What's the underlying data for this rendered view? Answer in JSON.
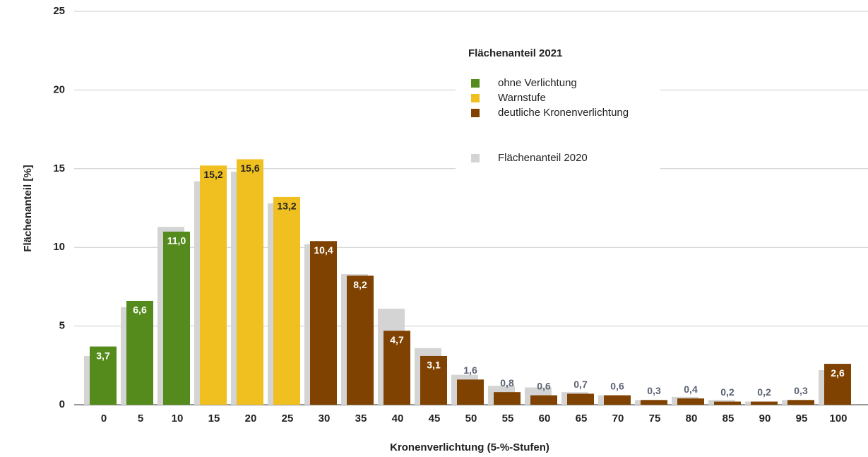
{
  "chart_data": {
    "type": "bar",
    "x_label": "Kronenverlichtung (5-%-Stufen)",
    "y_label": "Flächenanteil [%]",
    "legend_title": "Flächenanteil 2021",
    "categories": [
      0,
      5,
      10,
      15,
      20,
      25,
      30,
      35,
      40,
      45,
      50,
      55,
      60,
      65,
      70,
      75,
      80,
      85,
      90,
      95,
      100
    ],
    "ylim": [
      0,
      25
    ],
    "yticks": [
      0,
      5,
      10,
      15,
      20,
      25
    ],
    "grid": true,
    "series": [
      {
        "name": "Flächenanteil 2020",
        "color": "#d4d4d4",
        "role": "background",
        "values": [
          3.1,
          6.2,
          11.3,
          14.2,
          14.8,
          12.8,
          10.2,
          8.3,
          6.1,
          3.6,
          1.9,
          1.2,
          1.1,
          0.8,
          0.6,
          0.3,
          0.5,
          0.3,
          0.2,
          0.3,
          2.2
        ]
      },
      {
        "name": "ohne Verlichtung",
        "color": "#548b1c",
        "label_color": "#ffffff",
        "values": [
          3.7,
          6.6,
          11.0,
          null,
          null,
          null,
          null,
          null,
          null,
          null,
          null,
          null,
          null,
          null,
          null,
          null,
          null,
          null,
          null,
          null,
          null
        ],
        "value_labels": [
          "3,7",
          "6,6",
          "11,0",
          null,
          null,
          null,
          null,
          null,
          null,
          null,
          null,
          null,
          null,
          null,
          null,
          null,
          null,
          null,
          null,
          null,
          null
        ]
      },
      {
        "name": "Warnstufe",
        "color": "#f0c020",
        "label_color": "#222222",
        "values": [
          null,
          null,
          null,
          15.2,
          15.6,
          13.2,
          null,
          null,
          null,
          null,
          null,
          null,
          null,
          null,
          null,
          null,
          null,
          null,
          null,
          null,
          null
        ],
        "value_labels": [
          null,
          null,
          null,
          "15,2",
          "15,6",
          "13,2",
          null,
          null,
          null,
          null,
          null,
          null,
          null,
          null,
          null,
          null,
          null,
          null,
          null,
          null,
          null
        ]
      },
      {
        "name": "deutliche Kronenverlichtung",
        "color": "#7f4200",
        "label_color": "#ffffff",
        "values": [
          null,
          null,
          null,
          null,
          null,
          null,
          10.4,
          8.2,
          4.7,
          3.1,
          1.6,
          0.8,
          0.6,
          0.7,
          0.6,
          0.3,
          0.4,
          0.2,
          0.2,
          0.3,
          2.6
        ],
        "value_labels": [
          null,
          null,
          null,
          null,
          null,
          null,
          "10,4",
          "8,2",
          "4,7",
          "3,1",
          "1,6",
          "0,8",
          "0,6",
          "0,7",
          "0,6",
          "0,3",
          "0,4",
          "0,2",
          "0,2",
          "0,3",
          "2,6"
        ]
      }
    ]
  }
}
